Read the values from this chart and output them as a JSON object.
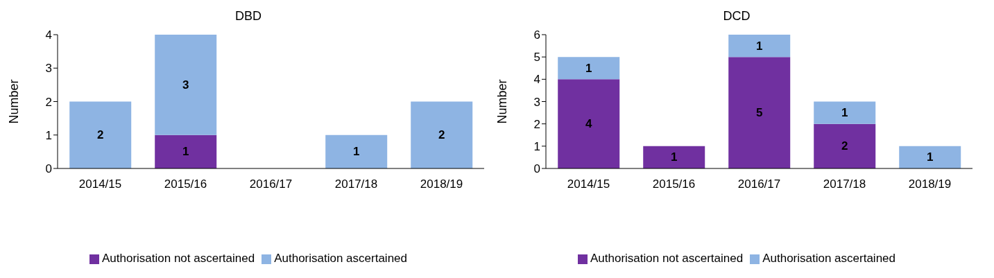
{
  "chart_data": [
    {
      "type": "bar",
      "title": "DBD",
      "ylabel": "Number",
      "categories": [
        "2014/15",
        "2015/16",
        "2016/17",
        "2017/18",
        "2018/19"
      ],
      "stacked": true,
      "ylim": [
        0,
        4
      ],
      "yticks": [
        0,
        1,
        2,
        3,
        4
      ],
      "grid": false,
      "legend": "bottom",
      "series": [
        {
          "name": "Authorisation not ascertained",
          "color": "#7030a0",
          "values": [
            0,
            1,
            0,
            0,
            0
          ],
          "value_labels": [
            null,
            "1",
            null,
            null,
            null
          ]
        },
        {
          "name": "Authorisation ascertained",
          "color": "#8eb4e3",
          "values": [
            2,
            3,
            0,
            1,
            2
          ],
          "value_labels": [
            "2",
            "3",
            null,
            "1",
            "2"
          ]
        }
      ]
    },
    {
      "type": "bar",
      "title": "DCD",
      "ylabel": "Number",
      "categories": [
        "2014/15",
        "2015/16",
        "2016/17",
        "2017/18",
        "2018/19"
      ],
      "stacked": true,
      "ylim": [
        0,
        6
      ],
      "yticks": [
        0,
        1,
        2,
        3,
        4,
        5,
        6
      ],
      "grid": false,
      "legend": "bottom",
      "series": [
        {
          "name": "Authorisation not ascertained",
          "color": "#7030a0",
          "values": [
            4,
            1,
            5,
            2,
            0
          ],
          "value_labels": [
            "4",
            "1",
            "5",
            "2",
            null
          ]
        },
        {
          "name": "Authorisation ascertained",
          "color": "#8eb4e3",
          "values": [
            1,
            0,
            1,
            1,
            1
          ],
          "value_labels": [
            "1",
            null,
            "1",
            "1",
            "1"
          ]
        }
      ]
    }
  ]
}
